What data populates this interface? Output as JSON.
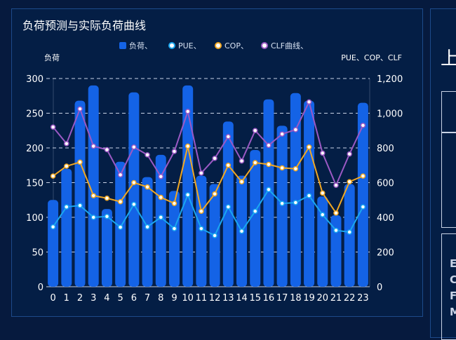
{
  "panel": {
    "title": "负荷预测与实际负荷曲线"
  },
  "right_panel": {
    "big_text": "上",
    "letters": [
      "E",
      "C",
      "F",
      "M"
    ]
  },
  "chart_data": {
    "type": "bar",
    "title": "负荷预测与实际负荷曲线",
    "categories": [
      "0",
      "1",
      "2",
      "3",
      "4",
      "5",
      "6",
      "7",
      "8",
      "9",
      "10",
      "11",
      "12",
      "13",
      "14",
      "15",
      "16",
      "17",
      "18",
      "19",
      "20",
      "21",
      "22",
      "23"
    ],
    "ylabel_left": "负荷",
    "ylabel_right": "PUE、COP、CLF",
    "ylim_left": [
      0,
      300
    ],
    "ylim_right": [
      0,
      1200
    ],
    "yticks_left": [
      "0",
      "50",
      "100",
      "150",
      "200",
      "250",
      "300"
    ],
    "yticks_right": [
      "0",
      "200",
      "400",
      "600",
      "800",
      "1,000",
      "1,200"
    ],
    "grid": true,
    "legend_position": "top-center",
    "series": [
      {
        "name": "负荷、",
        "type": "bar",
        "axis": "left",
        "color": "#1463e6",
        "values": [
          125,
          170,
          268,
          290,
          112,
          180,
          280,
          158,
          190,
          138,
          290,
          160,
          148,
          238,
          160,
          197,
          270,
          232,
          279,
          268,
          130,
          103,
          148,
          265
        ]
      },
      {
        "name": "PUE、",
        "type": "line",
        "axis": "right",
        "color": "#1aa7f0",
        "values": [
          345,
          460,
          468,
          400,
          405,
          343,
          475,
          345,
          400,
          335,
          530,
          335,
          295,
          460,
          320,
          435,
          560,
          480,
          485,
          525,
          415,
          325,
          315,
          460
        ]
      },
      {
        "name": "COP、",
        "type": "line",
        "axis": "right",
        "color": "#f2a822",
        "values": [
          638,
          695,
          718,
          525,
          510,
          490,
          600,
          575,
          515,
          480,
          810,
          435,
          535,
          700,
          605,
          715,
          705,
          685,
          680,
          805,
          540,
          425,
          605,
          638
        ]
      },
      {
        "name": "CLF曲线、",
        "type": "line",
        "axis": "right",
        "color": "#9b59c4",
        "values": [
          920,
          825,
          1025,
          810,
          790,
          645,
          805,
          760,
          635,
          780,
          1010,
          655,
          740,
          865,
          725,
          900,
          815,
          880,
          905,
          1065,
          770,
          585,
          765,
          930
        ]
      }
    ]
  }
}
